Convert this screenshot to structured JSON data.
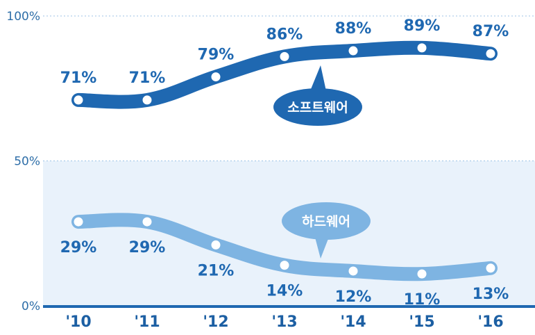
{
  "chart_data": {
    "type": "line",
    "categories": [
      "'10",
      "'11",
      "'12",
      "'13",
      "'14",
      "'15",
      "'16"
    ],
    "series": [
      {
        "name": "소프트웨어",
        "values": [
          71,
          71,
          79,
          86,
          88,
          89,
          87
        ],
        "labels": [
          "71%",
          "71%",
          "79%",
          "86%",
          "88%",
          "89%",
          "87%"
        ],
        "color": "#1f68b1"
      },
      {
        "name": "하드웨어",
        "values": [
          29,
          29,
          21,
          14,
          12,
          11,
          13
        ],
        "labels": [
          "29%",
          "29%",
          "21%",
          "14%",
          "12%",
          "11%",
          "13%"
        ],
        "color": "#7eb4e2"
      }
    ],
    "ylim": [
      0,
      100
    ],
    "yticks": [
      {
        "value": 0,
        "label": "0%"
      },
      {
        "value": 50,
        "label": "50%"
      },
      {
        "value": 100,
        "label": "100%"
      }
    ],
    "lower_band_fill": "#e9f2fb",
    "grid": "dotted"
  }
}
